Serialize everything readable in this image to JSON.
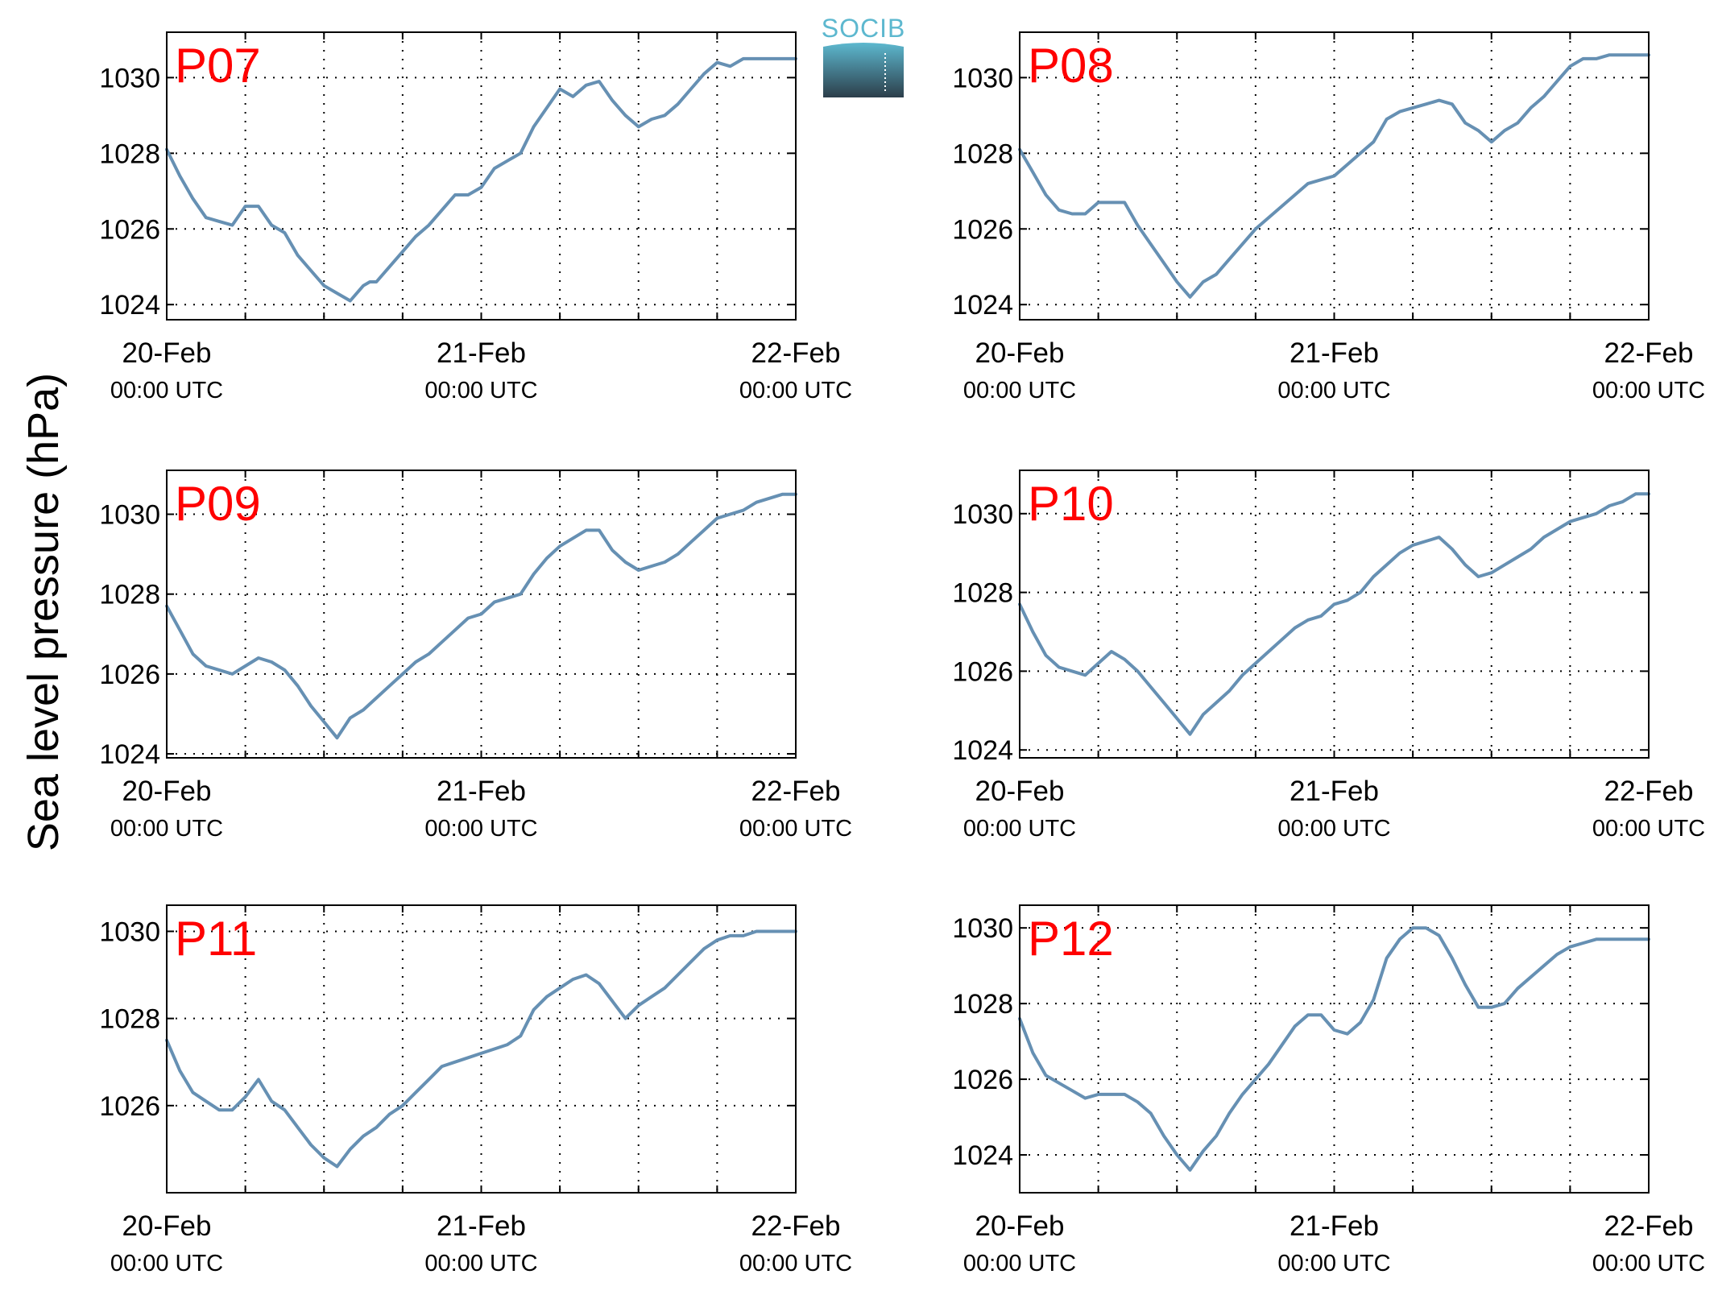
{
  "ylabel": "Sea level pressure (hPa)",
  "logo": {
    "text": "SOCIB",
    "color_top": "#5db8cf",
    "color_bottom": "#2c3e4a"
  },
  "colors": {
    "series": "#6690b3",
    "panel_label": "#ff0000"
  },
  "chart_data": [
    {
      "type": "line",
      "name": "P07",
      "panel_label": "P07",
      "x_ticks": [
        {
          "date": "20-Feb",
          "time": "00:00 UTC"
        },
        {
          "date": "21-Feb",
          "time": "00:00 UTC"
        },
        {
          "date": "22-Feb",
          "time": "00:00 UTC"
        }
      ],
      "x_unit": "hours since 20-Feb 00:00 UTC",
      "xlim": [
        0,
        48
      ],
      "ylim": [
        1023.6,
        1031.2
      ],
      "yticks": [
        1024,
        1026,
        1028,
        1030
      ],
      "grid": true,
      "x": [
        0,
        1,
        2,
        3,
        4,
        5,
        6,
        7,
        8,
        9,
        10,
        11,
        12,
        13,
        14,
        15,
        15.5,
        16,
        17,
        18,
        19,
        20,
        21,
        22,
        23,
        24,
        25,
        26,
        27,
        28,
        29,
        30,
        31,
        32,
        33,
        34,
        35,
        36,
        37,
        38,
        39,
        40,
        41,
        42,
        43,
        44,
        45,
        46,
        47,
        48
      ],
      "y": [
        1028.1,
        1027.4,
        1026.8,
        1026.3,
        1026.2,
        1026.1,
        1026.6,
        1026.6,
        1026.1,
        1025.9,
        1025.3,
        1024.9,
        1024.5,
        1024.3,
        1024.1,
        1024.5,
        1024.6,
        1024.6,
        1025.0,
        1025.4,
        1025.8,
        1026.1,
        1026.5,
        1026.9,
        1026.9,
        1027.1,
        1027.6,
        1027.8,
        1028.0,
        1028.7,
        1029.2,
        1029.7,
        1029.5,
        1029.8,
        1029.9,
        1029.4,
        1029.0,
        1028.7,
        1028.9,
        1029.0,
        1029.3,
        1029.7,
        1030.1,
        1030.4,
        1030.3,
        1030.5,
        1030.5,
        1030.5,
        1030.5,
        1030.5
      ]
    },
    {
      "type": "line",
      "name": "P08",
      "panel_label": "P08",
      "x_ticks": [
        {
          "date": "20-Feb",
          "time": "00:00 UTC"
        },
        {
          "date": "21-Feb",
          "time": "00:00 UTC"
        },
        {
          "date": "22-Feb",
          "time": "00:00 UTC"
        }
      ],
      "x_unit": "hours since 20-Feb 00:00 UTC",
      "xlim": [
        0,
        48
      ],
      "ylim": [
        1023.6,
        1031.2
      ],
      "yticks": [
        1024,
        1026,
        1028,
        1030
      ],
      "grid": true,
      "x": [
        0,
        1,
        2,
        3,
        4,
        5,
        6,
        7,
        8,
        9,
        10,
        11,
        12,
        13,
        14,
        15,
        16,
        17,
        18,
        19,
        20,
        21,
        22,
        23,
        24,
        25,
        26,
        27,
        28,
        29,
        30,
        31,
        32,
        33,
        34,
        35,
        36,
        37,
        38,
        39,
        40,
        41,
        42,
        43,
        44,
        45,
        46,
        47,
        48
      ],
      "y": [
        1028.1,
        1027.5,
        1026.9,
        1026.5,
        1026.4,
        1026.4,
        1026.7,
        1026.7,
        1026.7,
        1026.1,
        1025.6,
        1025.1,
        1024.6,
        1024.2,
        1024.6,
        1024.8,
        1025.2,
        1025.6,
        1026.0,
        1026.3,
        1026.6,
        1026.9,
        1027.2,
        1027.3,
        1027.4,
        1027.7,
        1028.0,
        1028.3,
        1028.9,
        1029.1,
        1029.2,
        1029.3,
        1029.4,
        1029.3,
        1028.8,
        1028.6,
        1028.3,
        1028.6,
        1028.8,
        1029.2,
        1029.5,
        1029.9,
        1030.3,
        1030.5,
        1030.5,
        1030.6,
        1030.6,
        1030.6,
        1030.6
      ]
    },
    {
      "type": "line",
      "name": "P09",
      "panel_label": "P09",
      "x_ticks": [
        {
          "date": "20-Feb",
          "time": "00:00 UTC"
        },
        {
          "date": "21-Feb",
          "time": "00:00 UTC"
        },
        {
          "date": "22-Feb",
          "time": "00:00 UTC"
        }
      ],
      "x_unit": "hours since 20-Feb 00:00 UTC",
      "xlim": [
        0,
        48
      ],
      "ylim": [
        1023.9,
        1031.1
      ],
      "yticks": [
        1024,
        1026,
        1028,
        1030
      ],
      "grid": true,
      "x": [
        0,
        1,
        2,
        3,
        4,
        5,
        6,
        7,
        8,
        9,
        10,
        11,
        12,
        13,
        14,
        15,
        16,
        17,
        18,
        19,
        20,
        21,
        22,
        23,
        24,
        25,
        26,
        27,
        28,
        29,
        30,
        31,
        32,
        33,
        34,
        35,
        36,
        37,
        38,
        39,
        40,
        41,
        42,
        43,
        44,
        45,
        46,
        47,
        48
      ],
      "y": [
        1027.7,
        1027.1,
        1026.5,
        1026.2,
        1026.1,
        1026.0,
        1026.2,
        1026.4,
        1026.3,
        1026.1,
        1025.7,
        1025.2,
        1024.8,
        1024.4,
        1024.9,
        1025.1,
        1025.4,
        1025.7,
        1026.0,
        1026.3,
        1026.5,
        1026.8,
        1027.1,
        1027.4,
        1027.5,
        1027.8,
        1027.9,
        1028.0,
        1028.5,
        1028.9,
        1029.2,
        1029.4,
        1029.6,
        1029.6,
        1029.1,
        1028.8,
        1028.6,
        1028.7,
        1028.8,
        1029.0,
        1029.3,
        1029.6,
        1029.9,
        1030.0,
        1030.1,
        1030.3,
        1030.4,
        1030.5,
        1030.5
      ]
    },
    {
      "type": "line",
      "name": "P10",
      "panel_label": "P10",
      "x_ticks": [
        {
          "date": "20-Feb",
          "time": "00:00 UTC"
        },
        {
          "date": "21-Feb",
          "time": "00:00 UTC"
        },
        {
          "date": "22-Feb",
          "time": "00:00 UTC"
        }
      ],
      "x_unit": "hours since 20-Feb 00:00 UTC",
      "xlim": [
        0,
        48
      ],
      "ylim": [
        1023.8,
        1031.1
      ],
      "yticks": [
        1024,
        1026,
        1028,
        1030
      ],
      "grid": true,
      "x": [
        0,
        1,
        2,
        3,
        4,
        5,
        6,
        7,
        8,
        9,
        10,
        11,
        12,
        13,
        14,
        15,
        16,
        17,
        18,
        19,
        20,
        21,
        22,
        23,
        24,
        25,
        26,
        27,
        28,
        29,
        30,
        31,
        32,
        33,
        34,
        35,
        36,
        37,
        38,
        39,
        40,
        41,
        42,
        43,
        44,
        45,
        46,
        47,
        48
      ],
      "y": [
        1027.7,
        1027.0,
        1026.4,
        1026.1,
        1026.0,
        1025.9,
        1026.2,
        1026.5,
        1026.3,
        1026.0,
        1025.6,
        1025.2,
        1024.8,
        1024.4,
        1024.9,
        1025.2,
        1025.5,
        1025.9,
        1026.2,
        1026.5,
        1026.8,
        1027.1,
        1027.3,
        1027.4,
        1027.7,
        1027.8,
        1028.0,
        1028.4,
        1028.7,
        1029.0,
        1029.2,
        1029.3,
        1029.4,
        1029.1,
        1028.7,
        1028.4,
        1028.5,
        1028.7,
        1028.9,
        1029.1,
        1029.4,
        1029.6,
        1029.8,
        1029.9,
        1030.0,
        1030.2,
        1030.3,
        1030.5,
        1030.5
      ]
    },
    {
      "type": "line",
      "name": "P11",
      "panel_label": "P11",
      "x_ticks": [
        {
          "date": "20-Feb",
          "time": "00:00 UTC"
        },
        {
          "date": "21-Feb",
          "time": "00:00 UTC"
        },
        {
          "date": "22-Feb",
          "time": "00:00 UTC"
        }
      ],
      "x_unit": "hours since 20-Feb 00:00 UTC",
      "xlim": [
        0,
        48
      ],
      "ylim": [
        1024.0,
        1030.6
      ],
      "yticks": [
        1026,
        1028,
        1030
      ],
      "grid": true,
      "x": [
        0,
        1,
        2,
        3,
        4,
        5,
        6,
        7,
        8,
        9,
        10,
        11,
        12,
        13,
        14,
        15,
        16,
        17,
        18,
        19,
        20,
        21,
        22,
        23,
        24,
        25,
        26,
        27,
        28,
        29,
        30,
        31,
        32,
        33,
        34,
        35,
        36,
        37,
        38,
        39,
        40,
        41,
        42,
        43,
        44,
        45,
        46,
        47,
        48
      ],
      "y": [
        1027.5,
        1026.8,
        1026.3,
        1026.1,
        1025.9,
        1025.9,
        1026.2,
        1026.6,
        1026.1,
        1025.9,
        1025.5,
        1025.1,
        1024.8,
        1024.6,
        1025.0,
        1025.3,
        1025.5,
        1025.8,
        1026.0,
        1026.3,
        1026.6,
        1026.9,
        1027.0,
        1027.1,
        1027.2,
        1027.3,
        1027.4,
        1027.6,
        1028.2,
        1028.5,
        1028.7,
        1028.9,
        1029.0,
        1028.8,
        1028.4,
        1028.0,
        1028.3,
        1028.5,
        1028.7,
        1029.0,
        1029.3,
        1029.6,
        1029.8,
        1029.9,
        1029.9,
        1030.0,
        1030.0,
        1030.0,
        1030.0
      ]
    },
    {
      "type": "line",
      "name": "P12",
      "panel_label": "P12",
      "x_ticks": [
        {
          "date": "20-Feb",
          "time": "00:00 UTC"
        },
        {
          "date": "21-Feb",
          "time": "00:00 UTC"
        },
        {
          "date": "22-Feb",
          "time": "00:00 UTC"
        }
      ],
      "x_unit": "hours since 20-Feb 00:00 UTC",
      "xlim": [
        0,
        48
      ],
      "ylim": [
        1023.0,
        1030.6
      ],
      "yticks": [
        1024,
        1026,
        1028,
        1030
      ],
      "grid": true,
      "x": [
        0,
        1,
        2,
        3,
        4,
        5,
        6,
        7,
        8,
        9,
        10,
        11,
        12,
        13,
        14,
        15,
        16,
        17,
        18,
        19,
        20,
        21,
        22,
        23,
        24,
        25,
        26,
        27,
        28,
        29,
        30,
        31,
        32,
        33,
        34,
        35,
        36,
        37,
        38,
        39,
        40,
        41,
        42,
        43,
        44,
        45,
        46,
        47,
        48
      ],
      "y": [
        1027.6,
        1026.7,
        1026.1,
        1025.9,
        1025.7,
        1025.5,
        1025.6,
        1025.6,
        1025.6,
        1025.4,
        1025.1,
        1024.5,
        1024.0,
        1023.6,
        1024.1,
        1024.5,
        1025.1,
        1025.6,
        1026.0,
        1026.4,
        1026.9,
        1027.4,
        1027.7,
        1027.7,
        1027.3,
        1027.2,
        1027.5,
        1028.1,
        1029.2,
        1029.7,
        1030.0,
        1030.0,
        1029.8,
        1029.2,
        1028.5,
        1027.9,
        1027.9,
        1028.0,
        1028.4,
        1028.7,
        1029.0,
        1029.3,
        1029.5,
        1029.6,
        1029.7,
        1029.7,
        1029.7,
        1029.7,
        1029.7
      ]
    }
  ]
}
